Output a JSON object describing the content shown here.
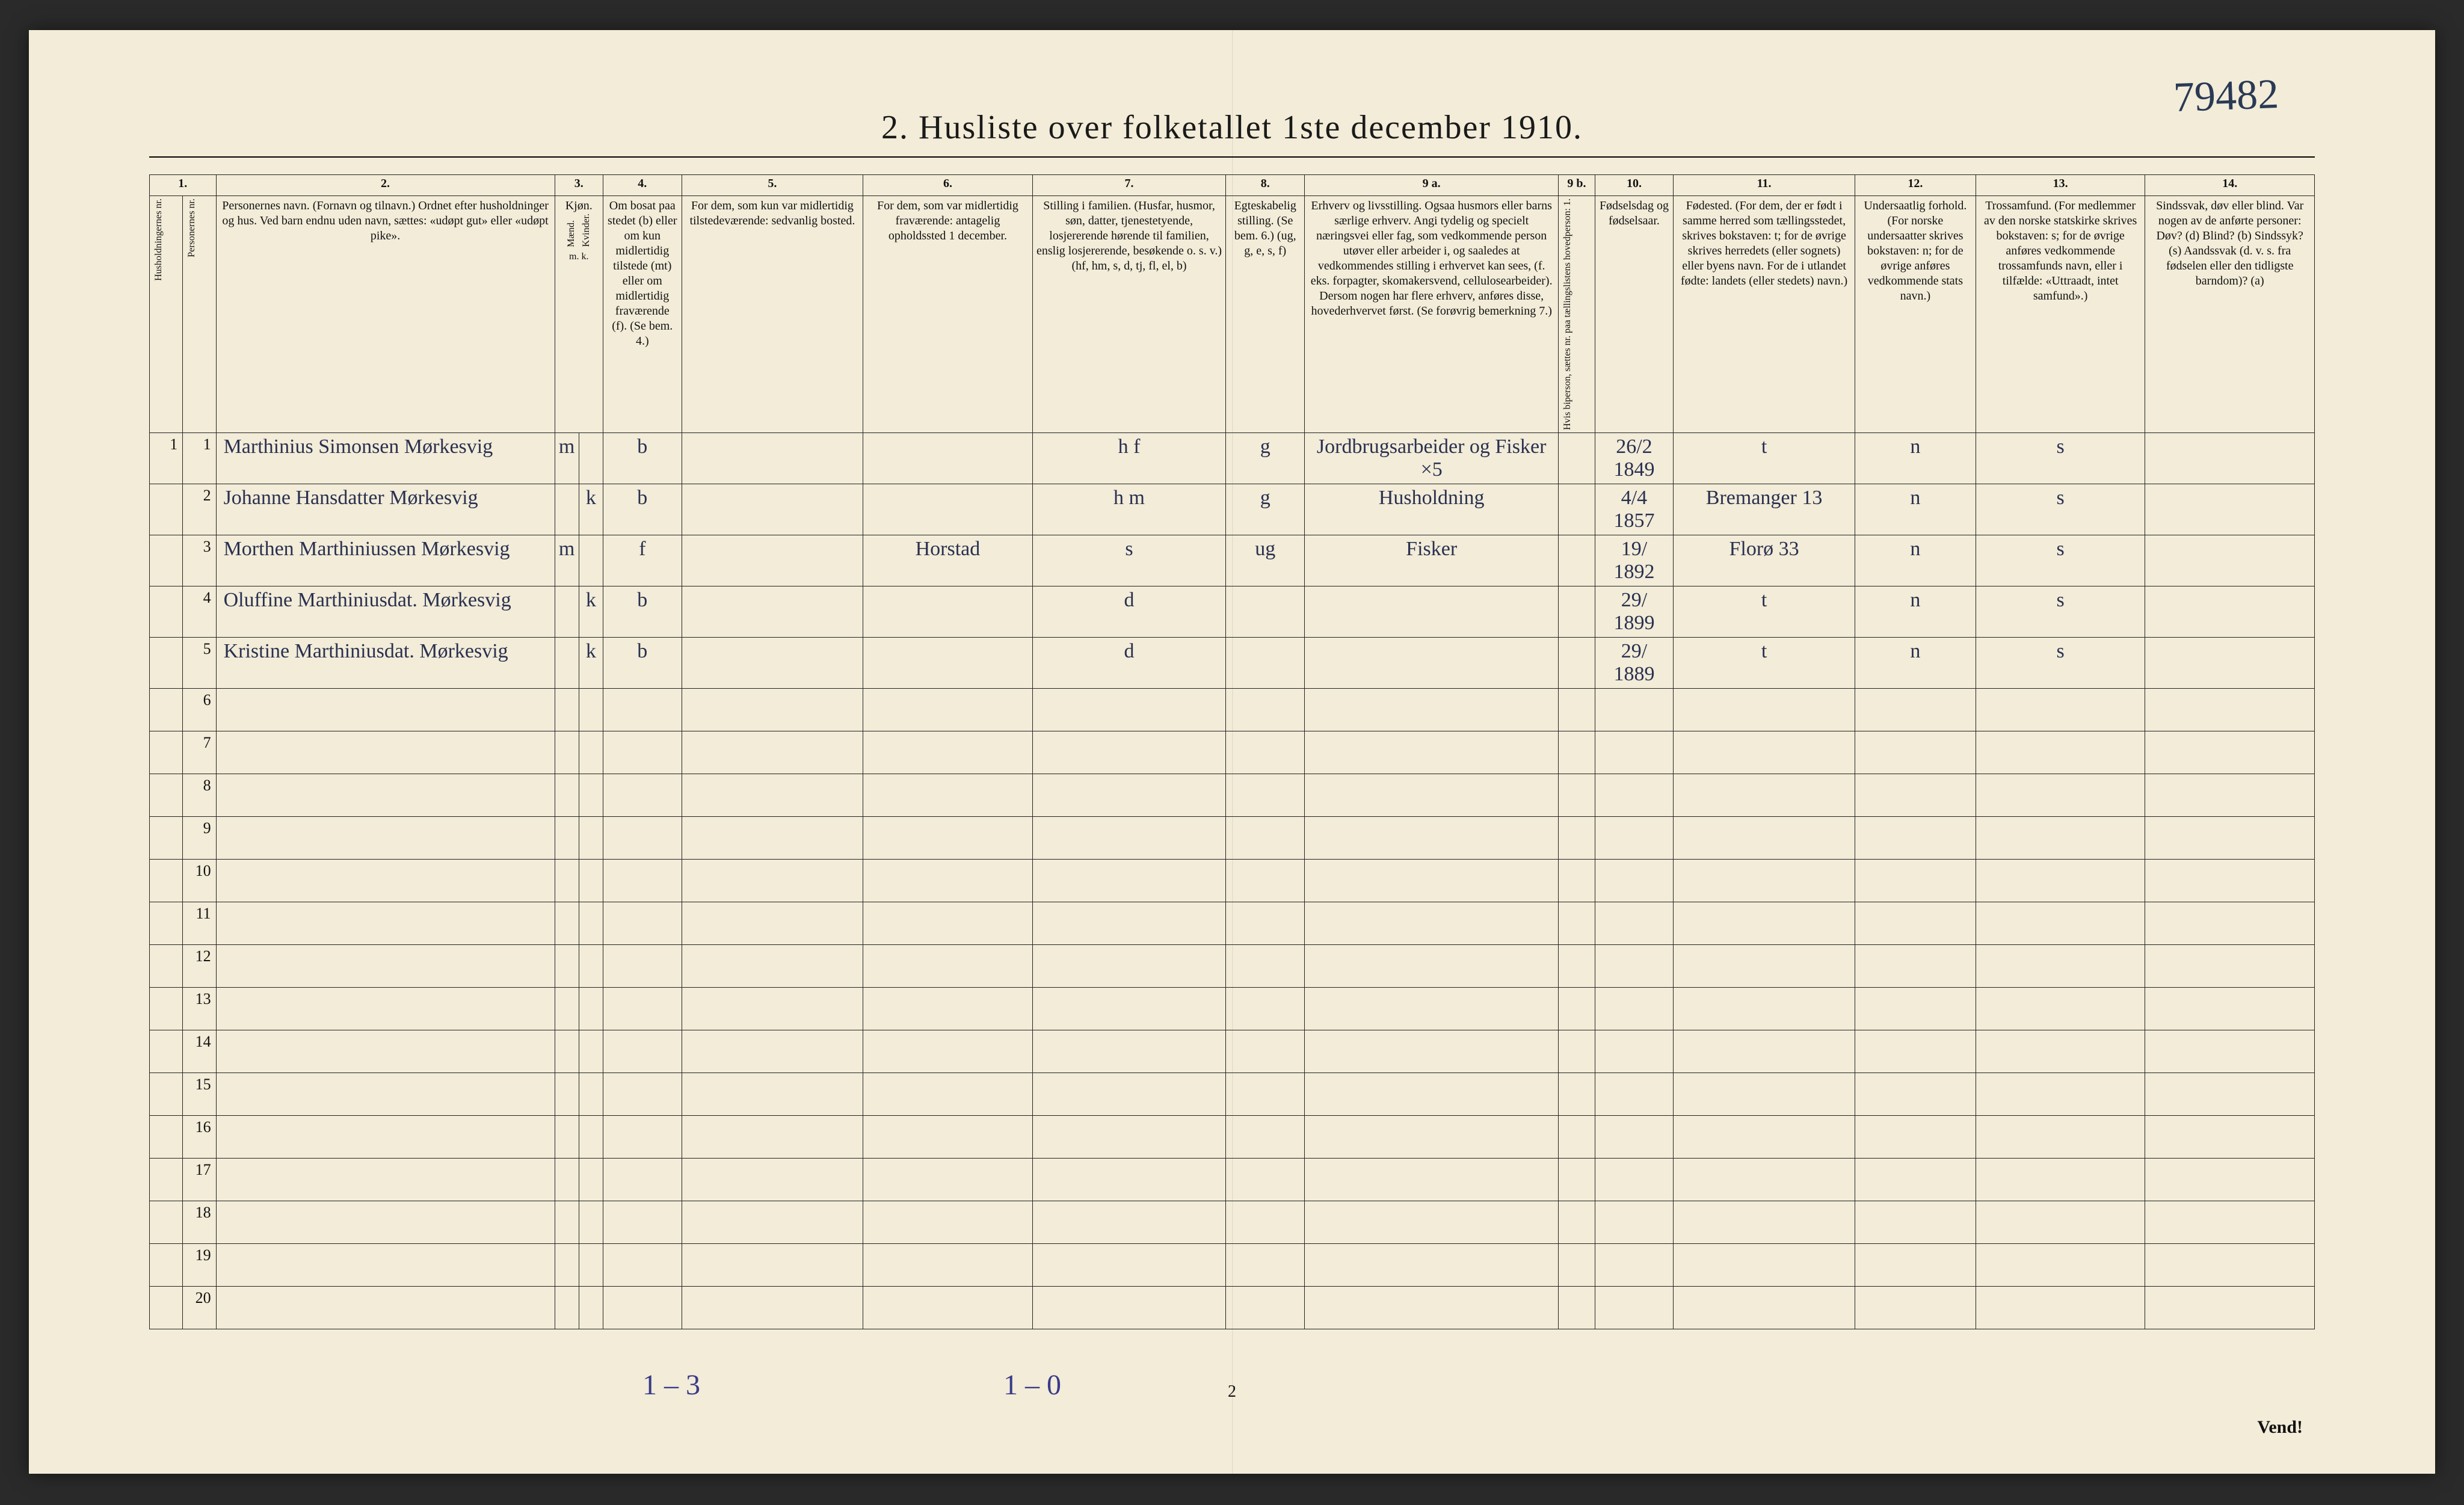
{
  "handwritten_top_right": "79482",
  "title": "2.  Husliste over folketallet 1ste december 1910.",
  "colnums": [
    "1.",
    "2.",
    "3.",
    "4.",
    "5.",
    "6.",
    "7.",
    "8.",
    "9 a.",
    "9 b.",
    "10.",
    "11.",
    "12.",
    "13.",
    "14."
  ],
  "headers": {
    "c1": "Husholdningernes nr.",
    "c1b": "Personernes nr.",
    "c2": "Personernes navn.\n(Fornavn og tilnavn.)\nOrdnet efter husholdninger og hus.\nVed barn endnu uden navn, sættes: «udøpt gut» eller «udøpt pike».",
    "c3": "Kjøn.",
    "c3m": "Mænd.",
    "c3k": "Kvinder.",
    "c3mk": "m.  k.",
    "c4": "Om bosat paa stedet (b) eller om kun midlertidig tilstede (mt) eller om midlertidig fraværende (f). (Se bem. 4.)",
    "c5": "For dem, som kun var midlertidig tilstedeværende:\nsedvanlig bosted.",
    "c6": "For dem, som var midlertidig fraværende:\nantagelig opholdssted 1 december.",
    "c7": "Stilling i familien.\n(Husfar, husmor, søn, datter, tjenestetyende, losjererende hørende til familien, enslig losjererende, besøkende o. s. v.)\n(hf, hm, s, d, tj, fl, el, b)",
    "c8": "Egteskabelig stilling.\n(Se bem. 6.)\n(ug, g, e, s, f)",
    "c9a": "Erhverv og livsstilling.\nOgsaa husmors eller barns særlige erhverv. Angi tydelig og specielt næringsvei eller fag, som vedkommende person utøver eller arbeider i, og saaledes at vedkommendes stilling i erhvervet kan sees, (f. eks. forpagter, skomakersvend, cellulosearbeider). Dersom nogen har flere erhverv, anføres disse, hovederhvervet først.\n(Se forøvrig bemerkning 7.)",
    "c9b": "Hvis biperson, sættes nr. paa tællingslistens hovedperson: 1.",
    "c10": "Fødselsdag og fødselsaar.",
    "c11": "Fødested.\n(For dem, der er født i samme herred som tællingsstedet, skrives bokstaven: t; for de øvrige skrives herredets (eller sognets) eller byens navn. For de i utlandet fødte: landets (eller stedets) navn.)",
    "c12": "Undersaatlig forhold.\n(For norske undersaatter skrives bokstaven: n; for de øvrige anføres vedkommende stats navn.)",
    "c13": "Trossamfund.\n(For medlemmer av den norske statskirke skrives bokstaven: s; for de øvrige anføres vedkommende trossamfunds navn, eller i tilfælde: «Uttraadt, intet samfund».)",
    "c14": "Sindssvak, døv eller blind.\nVar nogen av de anførte personer:\nDøv? (d)\nBlind? (b)\nSindssyk? (s)\nAandssvak (d. v. s. fra fødselen eller den tidligste barndom)? (a)"
  },
  "rows": [
    {
      "n": "1",
      "name": "Marthinius Simonsen Mørkesvig",
      "m": "m",
      "k": "",
      "bos": "b",
      "mt": "",
      "fr": "",
      "stil": "h f",
      "egt": "g",
      "erh": "Jordbrugsarbeider og Fisker    ×5",
      "hb": "",
      "fod": "26/2 1849",
      "fst": "t",
      "und": "n",
      "tro": "s",
      "sin": ""
    },
    {
      "n": "2",
      "name": "Johanne Hansdatter Mørkesvig",
      "m": "",
      "k": "k",
      "bos": "b",
      "mt": "",
      "fr": "",
      "stil": "h m",
      "egt": "g",
      "erh": "Husholdning",
      "hb": "",
      "fod": "4/4 1857",
      "fst": "Bremanger  13",
      "und": "n",
      "tro": "s",
      "sin": ""
    },
    {
      "n": "3",
      "name": "Morthen Marthiniussen Mørkesvig",
      "m": "m",
      "k": "",
      "bos": "f",
      "mt": "",
      "fr": "Horstad",
      "stil": "s",
      "egt": "ug",
      "erh": "Fisker",
      "hb": "",
      "fod": "19/ 1892",
      "fst": "Florø  33",
      "und": "n",
      "tro": "s",
      "sin": ""
    },
    {
      "n": "4",
      "name": "Oluffine Marthiniusdat. Mørkesvig",
      "m": "",
      "k": "k",
      "bos": "b",
      "mt": "",
      "fr": "",
      "stil": "d",
      "egt": "",
      "erh": "",
      "hb": "",
      "fod": "29/ 1899",
      "fst": "t",
      "und": "n",
      "tro": "s",
      "sin": ""
    },
    {
      "n": "5",
      "name": "Kristine Marthiniusdat. Mørkesvig",
      "m": "",
      "k": "k",
      "bos": "b",
      "mt": "",
      "fr": "",
      "stil": "d",
      "egt": "",
      "erh": "",
      "hb": "",
      "fod": "29/ 1889",
      "fst": "t",
      "und": "n",
      "tro": "s",
      "sin": ""
    }
  ],
  "empty_row_count": 15,
  "footer_hand_a": "1 – 3",
  "footer_hand_b": "1 – 0",
  "page_number": "2",
  "vend": "Vend!",
  "colors": {
    "paper": "#f2ecd8",
    "ink": "#111111",
    "handwriting": "#2a3050",
    "pencil": "#3a3a8a"
  },
  "typography": {
    "title_fontsize_pt": 42,
    "header_fontsize_pt": 15,
    "body_hand_fontsize_pt": 26
  }
}
